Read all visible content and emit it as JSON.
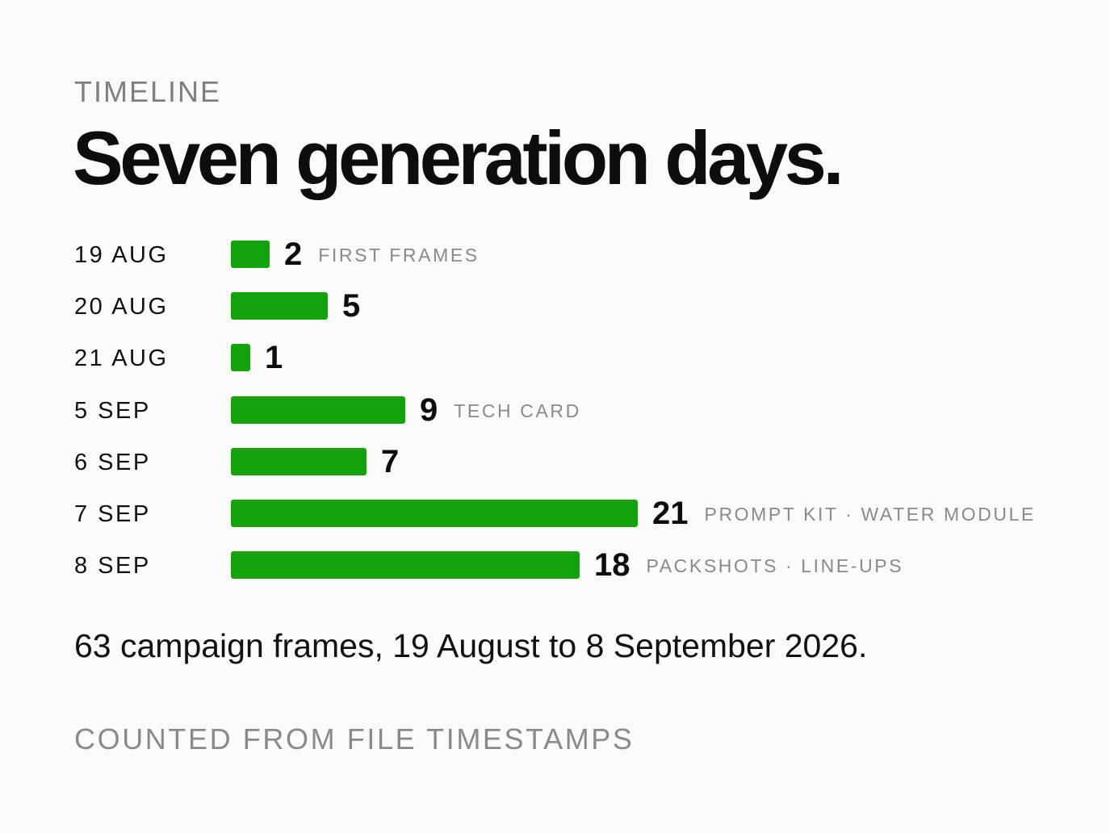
{
  "eyebrow": "TIMELINE",
  "title": "Seven generation days.",
  "summary": "63 campaign frames, 19 August to 8 September 2026.",
  "footnote": "COUNTED FROM FILE TIMESTAMPS",
  "colors": {
    "bar": "#13a30d",
    "background": "#fafaf8"
  },
  "chart_data": {
    "type": "bar",
    "orientation": "horizontal",
    "categories": [
      "19 AUG",
      "20 AUG",
      "21 AUG",
      "5 SEP",
      "6 SEP",
      "7 SEP",
      "8 SEP"
    ],
    "values": [
      2,
      5,
      1,
      9,
      7,
      21,
      18
    ],
    "annotations": [
      "FIRST FRAMES",
      "",
      "",
      "TECH CARD",
      "",
      "PROMPT KIT · WATER MODULE",
      "PACKSHOTS · LINE-UPS"
    ],
    "title": "Seven generation days.",
    "xlabel": "",
    "ylabel": "",
    "grid": false,
    "legend": "none"
  }
}
